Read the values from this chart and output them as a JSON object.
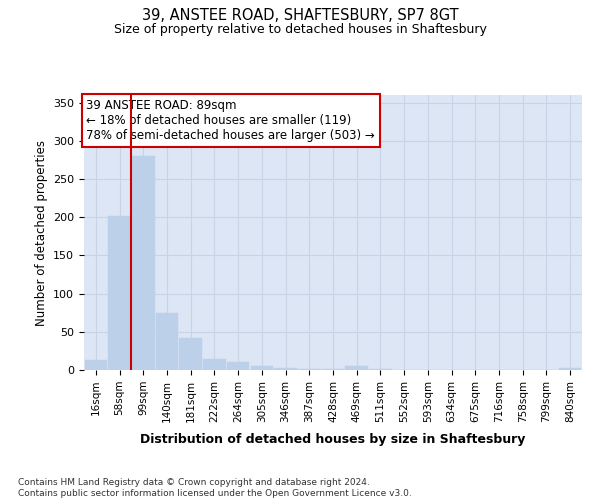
{
  "title1": "39, ANSTEE ROAD, SHAFTESBURY, SP7 8GT",
  "title2": "Size of property relative to detached houses in Shaftesbury",
  "xlabel": "Distribution of detached houses by size in Shaftesbury",
  "ylabel": "Number of detached properties",
  "bin_labels": [
    "16sqm",
    "58sqm",
    "99sqm",
    "140sqm",
    "181sqm",
    "222sqm",
    "264sqm",
    "305sqm",
    "346sqm",
    "387sqm",
    "428sqm",
    "469sqm",
    "511sqm",
    "552sqm",
    "593sqm",
    "634sqm",
    "675sqm",
    "716sqm",
    "758sqm",
    "799sqm",
    "840sqm"
  ],
  "bar_heights": [
    13,
    202,
    280,
    75,
    42,
    15,
    10,
    5,
    3,
    1,
    1,
    5,
    1,
    0,
    0,
    0,
    0,
    0,
    0,
    0,
    2
  ],
  "bar_color": "#bdd0ea",
  "bar_edge_color": "#bdd0ea",
  "grid_color": "#c8d4e6",
  "bg_color": "#dce6f5",
  "vline_color": "#cc0000",
  "vline_x": 2.0,
  "annotation_text": "39 ANSTEE ROAD: 89sqm\n← 18% of detached houses are smaller (119)\n78% of semi-detached houses are larger (503) →",
  "annotation_box_facecolor": "#ffffff",
  "annotation_box_edgecolor": "#cc0000",
  "ylim": [
    0,
    360
  ],
  "yticks": [
    0,
    50,
    100,
    150,
    200,
    250,
    300,
    350
  ],
  "footer": "Contains HM Land Registry data © Crown copyright and database right 2024.\nContains public sector information licensed under the Open Government Licence v3.0."
}
